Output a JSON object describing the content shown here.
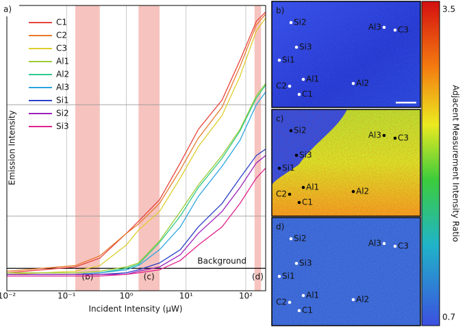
{
  "chart_data": {
    "type": "line",
    "panel_label": "a)",
    "x_label": "Incident Intensity (μW)",
    "y_label": "Emission Intensity",
    "log_x": true,
    "log_y": true,
    "grid": true,
    "legend": "upper-left",
    "xlim": [
      0.01,
      215
    ],
    "ylim": [
      2.14,
      777
    ],
    "xticks": [
      {
        "value": 0.01,
        "label": "10⁻²"
      },
      {
        "value": 0.1,
        "label": "10⁻¹"
      },
      {
        "value": 1,
        "label": "10⁰"
      },
      {
        "value": 10,
        "label": "10¹"
      },
      {
        "value": 100,
        "label": "10²"
      }
    ],
    "yticks": [
      10,
      100
    ],
    "x": [
      0.01,
      0.14,
      0.36,
      1,
      1.6,
      3.6,
      8,
      16,
      40,
      80,
      150,
      215
    ],
    "series": [
      {
        "name": "C1",
        "color": "#e8403a",
        "values": [
          3.1,
          3.5,
          4.2,
          7,
          9,
          14,
          30,
          60,
          110,
          250,
          560,
          680
        ]
      },
      {
        "name": "C2",
        "color": "#e8782c",
        "values": [
          3.2,
          3.6,
          4.4,
          7,
          8.5,
          13,
          26,
          50,
          95,
          220,
          520,
          650
        ]
      },
      {
        "name": "C3",
        "color": "#dccd2c",
        "values": [
          3.0,
          3.2,
          3.6,
          5.5,
          7.5,
          11,
          22,
          42,
          80,
          180,
          460,
          600
        ]
      },
      {
        "name": "Al1",
        "color": "#9acd32",
        "values": [
          3.1,
          3.1,
          3.2,
          3.5,
          3.8,
          6,
          11,
          19,
          35,
          60,
          120,
          155
        ]
      },
      {
        "name": "Al2",
        "color": "#2ec98a",
        "values": [
          3.0,
          3.0,
          3.1,
          3.4,
          3.7,
          5.8,
          10,
          18,
          33,
          58,
          115,
          150
        ]
      },
      {
        "name": "Al3",
        "color": "#2aa4e0",
        "values": [
          3.0,
          3.0,
          3.1,
          3.3,
          3.6,
          5,
          8,
          15,
          28,
          48,
          100,
          130
        ]
      },
      {
        "name": "Si1",
        "color": "#2a3fc8",
        "values": [
          3.0,
          3.0,
          3.0,
          3.1,
          3.3,
          3.8,
          5,
          8,
          13,
          22,
          35,
          40
        ]
      },
      {
        "name": "Si2",
        "color": "#9a1fb8",
        "values": [
          3.0,
          3.0,
          3.0,
          3.0,
          3.2,
          3.5,
          4.5,
          7,
          11,
          18,
          30,
          35
        ]
      },
      {
        "name": "Si3",
        "color": "#e0208a",
        "values": [
          2.9,
          2.9,
          2.9,
          3.0,
          3.1,
          3.3,
          4,
          5.5,
          8,
          13,
          22,
          27
        ]
      }
    ],
    "shaded_regions": [
      {
        "label": "(b)",
        "range": [
          0.14,
          0.36
        ]
      },
      {
        "label": "(c)",
        "range": [
          1.6,
          3.6
        ]
      },
      {
        "label": "(d)",
        "range": [
          140,
          180
        ]
      }
    ],
    "background": {
      "label": "Background",
      "value": 3.4
    }
  },
  "maps": [
    {
      "label": "b)",
      "points": [
        "Si2",
        "Si3",
        "Si1",
        "Al1",
        "C2",
        "C1",
        "Al3",
        "C3",
        "Al2"
      ]
    },
    {
      "label": "c)",
      "points": [
        "Si2",
        "Si3",
        "Si1",
        "Al1",
        "C2",
        "C1",
        "Al3",
        "C3",
        "Al2"
      ]
    },
    {
      "label": "d)",
      "points": [
        "Si2",
        "Si3",
        "Si1",
        "Al1",
        "C2",
        "C1",
        "Al3",
        "C3",
        "Al2"
      ]
    }
  ],
  "colorbar": {
    "max": 3.5,
    "min": 0.7,
    "label": "Adjacent Measurement Intensity Ratio"
  }
}
